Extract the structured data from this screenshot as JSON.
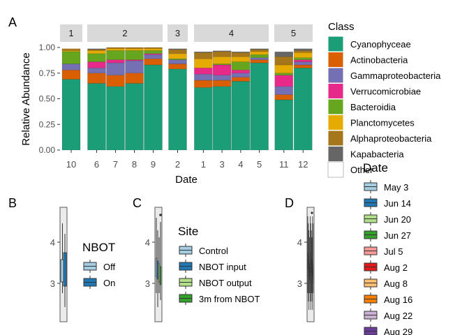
{
  "chart_data": [
    {
      "type": "bar",
      "panel_label": "A",
      "xlabel": "Date",
      "ylabel": "Relative Abundance",
      "ylim": [
        0,
        1
      ],
      "yticks": [
        "0.00",
        "0.25",
        "0.50",
        "0.75",
        "1.00"
      ],
      "legend_title": "Class",
      "legend_position": "right",
      "classes": [
        {
          "name": "Cyanophyceae",
          "color": "#1B9E77"
        },
        {
          "name": "Actinobacteria",
          "color": "#D95F02"
        },
        {
          "name": "Gammaproteobacteria",
          "color": "#7570B3"
        },
        {
          "name": "Verrucomicrobiae",
          "color": "#E7298A"
        },
        {
          "name": "Bacteroidia",
          "color": "#66A61E"
        },
        {
          "name": "Planctomycetes",
          "color": "#E6AB02"
        },
        {
          "name": "Alphaproteobacteria",
          "color": "#A6761D"
        },
        {
          "name": "Kapabacteria",
          "color": "#666666"
        },
        {
          "name": "Other",
          "color": "#FFFFFF"
        }
      ],
      "facets": [
        {
          "label": "1",
          "bars": [
            {
              "x": "10",
              "values": [
                0.69,
                0.09,
                0.06,
                0.0,
                0.12,
                0.01,
                0.02,
                0.0,
                0.01
              ]
            }
          ]
        },
        {
          "label": "2",
          "bars": [
            {
              "x": "6",
              "values": [
                0.65,
                0.1,
                0.05,
                0.06,
                0.08,
                0.03,
                0.01,
                0.01,
                0.01
              ]
            },
            {
              "x": "7",
              "values": [
                0.62,
                0.11,
                0.12,
                0.03,
                0.09,
                0.02,
                0.01,
                0.0,
                0.0
              ]
            },
            {
              "x": "8",
              "values": [
                0.65,
                0.1,
                0.12,
                0.01,
                0.09,
                0.02,
                0.01,
                0.0,
                0.0
              ]
            },
            {
              "x": "9",
              "values": [
                0.83,
                0.06,
                0.04,
                0.01,
                0.03,
                0.02,
                0.01,
                0.0,
                0.0
              ]
            }
          ]
        },
        {
          "label": "3",
          "bars": [
            {
              "x": "2",
              "values": [
                0.79,
                0.05,
                0.04,
                0.0,
                0.01,
                0.05,
                0.04,
                0.01,
                0.01
              ]
            }
          ]
        },
        {
          "label": "4",
          "bars": [
            {
              "x": "1",
              "values": [
                0.61,
                0.07,
                0.06,
                0.06,
                0.0,
                0.09,
                0.06,
                0.01,
                0.04
              ]
            },
            {
              "x": "3",
              "values": [
                0.62,
                0.06,
                0.05,
                0.1,
                0.01,
                0.07,
                0.05,
                0.01,
                0.03
              ]
            },
            {
              "x": "4",
              "values": [
                0.67,
                0.04,
                0.04,
                0.03,
                0.08,
                0.05,
                0.04,
                0.01,
                0.04
              ]
            },
            {
              "x": "5",
              "values": [
                0.85,
                0.03,
                0.02,
                0.0,
                0.03,
                0.03,
                0.02,
                0.01,
                0.01
              ]
            }
          ]
        },
        {
          "label": "5",
          "bars": [
            {
              "x": "11",
              "values": [
                0.49,
                0.05,
                0.08,
                0.11,
                0.02,
                0.08,
                0.08,
                0.05,
                0.04
              ]
            },
            {
              "x": "12",
              "values": [
                0.8,
                0.03,
                0.03,
                0.02,
                0.02,
                0.05,
                0.02,
                0.02,
                0.01
              ]
            }
          ]
        }
      ]
    },
    {
      "type": "box",
      "panel_label": "B",
      "yticks": [
        "3",
        "4"
      ],
      "legend_title": "NBOT",
      "groups": [
        {
          "name": "Off",
          "color": "#A6CEE3"
        },
        {
          "name": "On",
          "color": "#1F78B4"
        }
      ]
    },
    {
      "type": "box",
      "panel_label": "C",
      "yticks": [
        "3",
        "4"
      ],
      "legend_title": "Site",
      "groups": [
        {
          "name": "Control",
          "color": "#A6CEE3"
        },
        {
          "name": "NBOT input",
          "color": "#1F78B4"
        },
        {
          "name": "NBOT output",
          "color": "#B2DF8A"
        },
        {
          "name": "3m from NBOT",
          "color": "#33A02C"
        }
      ]
    },
    {
      "type": "box",
      "panel_label": "D",
      "yticks": [
        "3",
        "4"
      ],
      "legend_title": "Date",
      "groups": [
        {
          "name": "May 3",
          "color": "#A6CEE3"
        },
        {
          "name": "Jun 14",
          "color": "#1F78B4"
        },
        {
          "name": "Jun 20",
          "color": "#B2DF8A"
        },
        {
          "name": "Jun 27",
          "color": "#33A02C"
        },
        {
          "name": "Jul 5",
          "color": "#FB9A99"
        },
        {
          "name": "Aug 2",
          "color": "#E31A1C"
        },
        {
          "name": "Aug 8",
          "color": "#FDBF6F"
        },
        {
          "name": "Aug 16",
          "color": "#FF7F00"
        },
        {
          "name": "Aug 22",
          "color": "#CAB2D6"
        },
        {
          "name": "Aug 29",
          "color": "#6A3D9A"
        }
      ]
    }
  ]
}
